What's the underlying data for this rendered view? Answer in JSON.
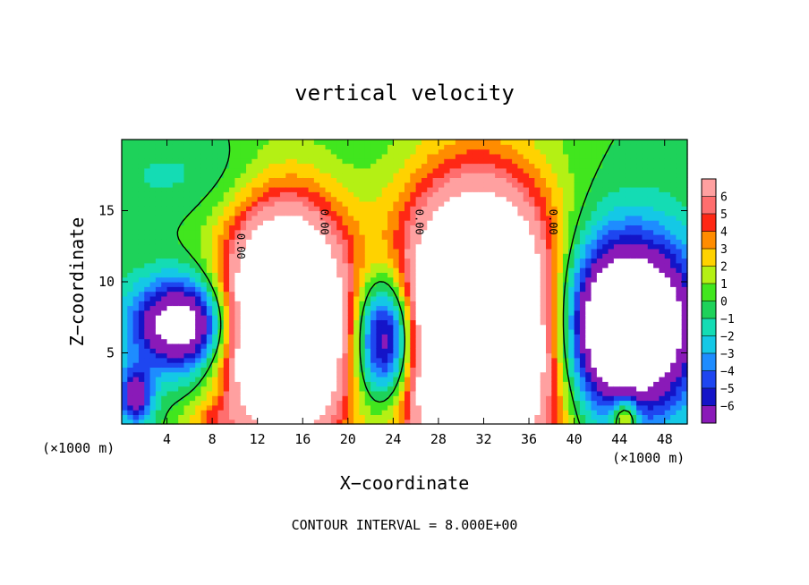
{
  "chart_data": {
    "type": "heatmap",
    "title": "vertical velocity",
    "xlabel": "X−coordinate",
    "ylabel": "Z−coordinate",
    "x_unit_left": "(×1000 m)",
    "x_unit_right": "(×1000 m)",
    "footer": "CONTOUR INTERVAL = 8.000E+00",
    "xlim": [
      0,
      50
    ],
    "ylim": [
      0,
      20
    ],
    "x_ticks": [
      4,
      8,
      12,
      16,
      20,
      24,
      28,
      32,
      36,
      40,
      44,
      48
    ],
    "y_ticks": [
      5,
      10,
      15
    ],
    "colorbar": {
      "levels": [
        -6,
        -5,
        -4,
        -3,
        -2,
        -1,
        0,
        1,
        2,
        3,
        4,
        5,
        6
      ],
      "colors": [
        "#8a1ab8",
        "#1414c8",
        "#1e46f0",
        "#1e8cff",
        "#14c8e6",
        "#14dcb4",
        "#1ed25a",
        "#41e61e",
        "#b4f014",
        "#ffd200",
        "#ff8c00",
        "#ff2814",
        "#ff6e6e",
        "#ffa0a0"
      ]
    },
    "zero_contour_label": "0.00",
    "cells": [
      {
        "xc": 14.5,
        "zc": 7.0,
        "rx": 5.2,
        "rz": 7.8,
        "w": 22
      },
      {
        "xc": 31.5,
        "zc": 6.5,
        "rx": 6.8,
        "rz": 9.5,
        "w": 24
      },
      {
        "xc": 5.5,
        "zc": 7.0,
        "rx": 4.5,
        "rz": 3.2,
        "w": -11
      },
      {
        "xc": 23.5,
        "zc": 6.0,
        "rx": 3.0,
        "rz": 4.5,
        "w": -13
      },
      {
        "xc": 44.5,
        "zc": 7.0,
        "rx": 6.0,
        "rz": 6.0,
        "w": -16
      },
      {
        "xc": 1.2,
        "zc": 2.0,
        "rx": 1.5,
        "rz": 2.0,
        "w": -7
      },
      {
        "xc": 6.0,
        "zc": 17.5,
        "rx": 10.0,
        "rz": 3.0,
        "w": -1.2
      },
      {
        "xc": 44.5,
        "zc": 0.5,
        "rx": 1.2,
        "rz": 1.5,
        "w": 6
      },
      {
        "xc": 8.0,
        "zc": 0.3,
        "rx": 2.5,
        "rz": 1.2,
        "w": 2.5
      }
    ]
  }
}
